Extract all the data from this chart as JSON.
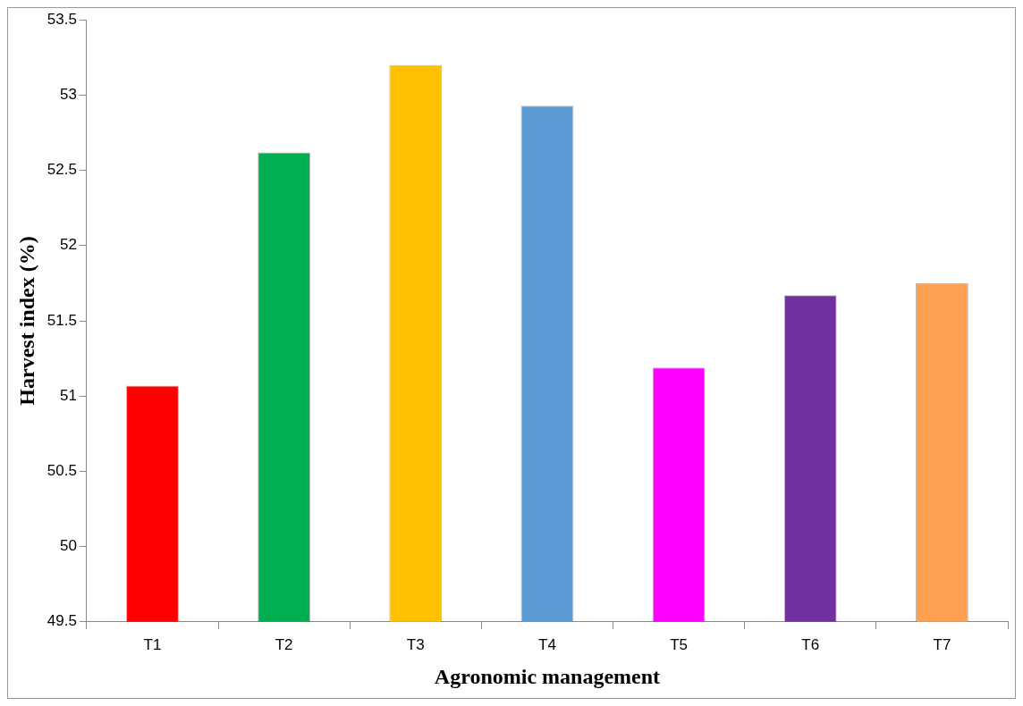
{
  "chart_data": {
    "type": "bar",
    "xlabel": "Agronomic management",
    "ylabel": "Harvest index (%)",
    "categories": [
      "T1",
      "T2",
      "T3",
      "T4",
      "T5",
      "T6",
      "T7"
    ],
    "values": [
      51.07,
      52.62,
      53.2,
      52.93,
      51.19,
      51.67,
      51.75
    ],
    "colors": [
      "#ff0000",
      "#00b050",
      "#ffc000",
      "#5b9bd5",
      "#ff00ff",
      "#7030a0",
      "#ffa050"
    ],
    "ylim": [
      49.5,
      53.5
    ],
    "yticks": [
      49.5,
      50,
      50.5,
      51,
      51.5,
      52,
      52.5,
      53,
      53.5
    ],
    "grid": false,
    "legend": false
  }
}
